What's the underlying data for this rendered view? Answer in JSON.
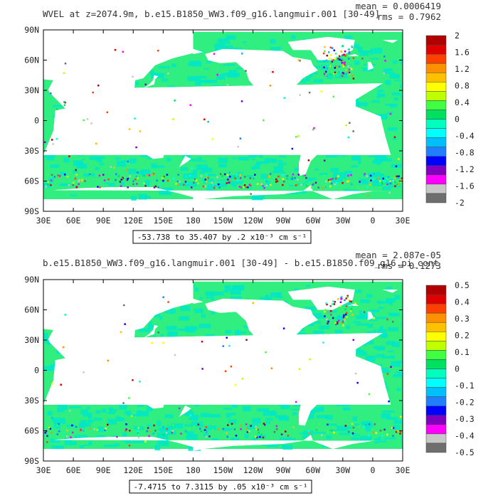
{
  "panels": [
    {
      "title": "WVEL at z=2074.9m, b.e15.B1850_WW3.f09_g16.langmuir.001 [30-49]",
      "mean": "mean = 0.0006419",
      "rms": "rms = 0.7962",
      "contour_info": "-53.738 to 35.407 by .2 x10⁻³ cm s⁻¹",
      "colorbar_labels": [
        "2",
        "1.6",
        "1.2",
        "0.8",
        "0.4",
        "0",
        "-0.4",
        "-0.8",
        "-1.2",
        "-1.6",
        "-2"
      ]
    },
    {
      "title": "b.e15.B1850_WW3.f09_g16.langmuir.001 [30-49] - b.e15.B1850.f09_g16.pi_cont",
      "mean": "mean = 2.087e-05",
      "rms": "rms = 0.1273",
      "contour_info": "-7.4715 to 7.3115 by .05 x10⁻³ cm s⁻¹",
      "colorbar_labels": [
        "0.5",
        "0.4",
        "0.3",
        "0.2",
        "0.1",
        "0",
        "-0.1",
        "-0.2",
        "-0.3",
        "-0.4",
        "-0.5"
      ]
    }
  ],
  "lat_labels": [
    "90N",
    "60N",
    "30N",
    "0",
    "30S",
    "60S",
    "90S"
  ],
  "lon_labels": [
    "30E",
    "60E",
    "90E",
    "120E",
    "150E",
    "180",
    "150W",
    "120W",
    "90W",
    "60W",
    "30W",
    "0",
    "30E"
  ],
  "colors": {
    "palette": [
      "#6e6e6e",
      "#c8c8c8",
      "#ff00ff",
      "#8000c0",
      "#0000ff",
      "#1f7fff",
      "#00bfff",
      "#00ffff",
      "#00ffbf",
      "#00e060",
      "#40ff40",
      "#c0ff00",
      "#ffff00",
      "#ffc000",
      "#ff9000",
      "#ff4000",
      "#e00000",
      "#b00000"
    ],
    "ocean_main": "#30ee80",
    "ocean_alt": "#00e6c8",
    "land": "#ffffff"
  }
}
